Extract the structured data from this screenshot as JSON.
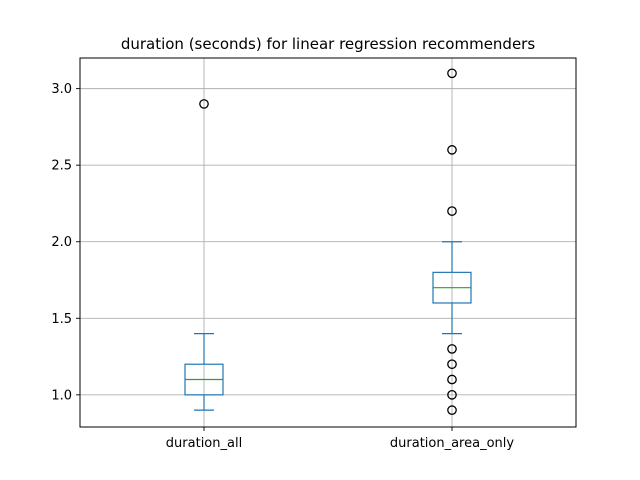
{
  "chart_data": {
    "type": "box",
    "title": "duration (seconds) for linear regression recommenders",
    "xlabel": "",
    "ylabel": "",
    "categories": [
      "duration_all",
      "duration_area_only"
    ],
    "ylim": [
      0.79,
      3.2
    ],
    "yticks": [
      1.0,
      1.5,
      2.0,
      2.5,
      3.0
    ],
    "ytick_labels": [
      "1.0",
      "1.5",
      "2.0",
      "2.5",
      "3.0"
    ],
    "grid": true,
    "boxes": [
      {
        "name": "duration_all",
        "whisker_low": 0.9,
        "q1": 1.0,
        "median": 1.1,
        "q3": 1.2,
        "whisker_high": 1.4,
        "outliers": [
          2.9
        ]
      },
      {
        "name": "duration_area_only",
        "whisker_low": 1.4,
        "q1": 1.6,
        "median": 1.7,
        "q3": 1.8,
        "whisker_high": 2.0,
        "outliers": [
          0.9,
          1.0,
          1.1,
          1.2,
          1.3,
          2.2,
          2.6,
          3.1
        ]
      }
    ],
    "colors": {
      "box": "#1f77b4",
      "median": "#2ca02c",
      "grid": "#b0b0b0",
      "axis": "#000000"
    }
  }
}
